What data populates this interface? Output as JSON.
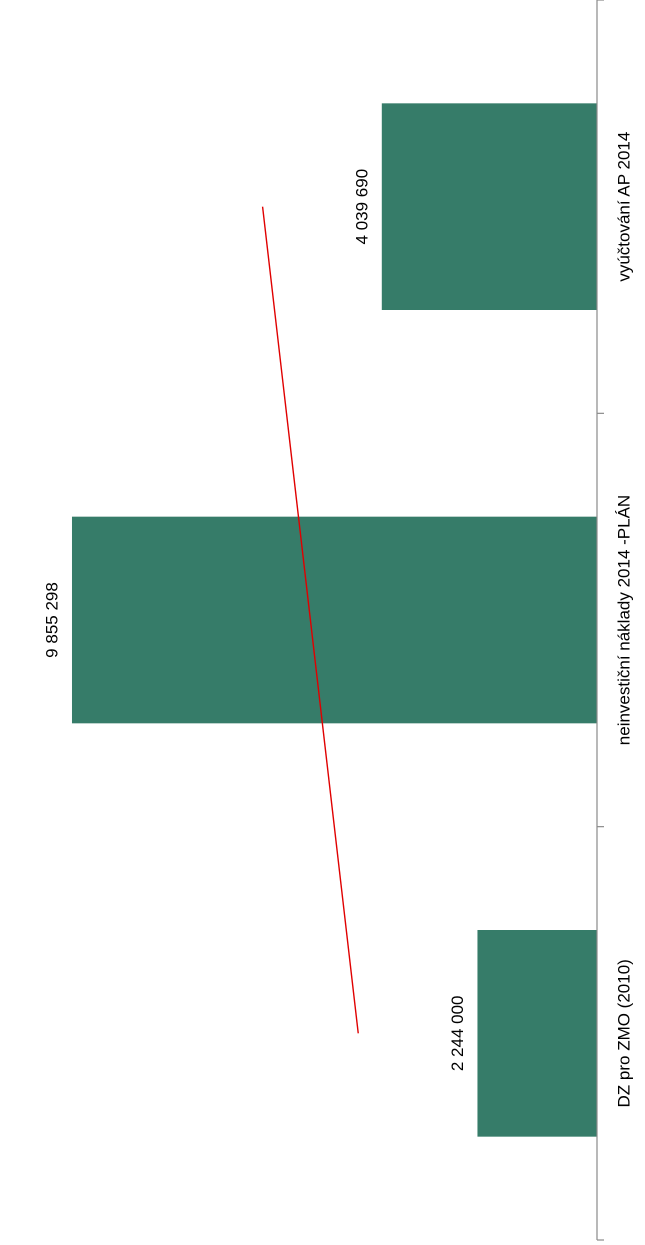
{
  "chart_data": {
    "type": "bar",
    "categories": [
      "DZ pro ZMO (2010)",
      "neinvestiční náklady 2014 -PLÁN",
      "vyúčtování AP 2014"
    ],
    "values": [
      2244000,
      9855298,
      4039690
    ],
    "value_labels": [
      "2 244 000",
      "9 855 298",
      "4 039 690"
    ],
    "trendline": {
      "type": "linear",
      "color": "#e00000"
    },
    "bar_color": "#367c69",
    "axis_color": "#8a8a8a",
    "ylim": [
      0,
      11000000
    ],
    "orientation": "rotated-90-clockwise"
  }
}
